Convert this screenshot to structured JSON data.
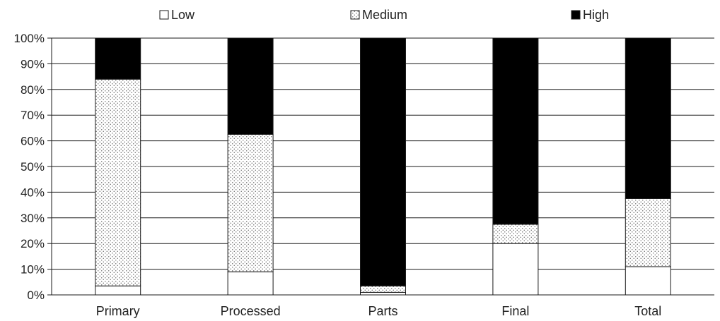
{
  "chart_data": {
    "type": "bar",
    "stacked": true,
    "percent_stacked": true,
    "categories": [
      "Primary",
      "Processed",
      "Parts",
      "Final",
      "Total"
    ],
    "series": [
      {
        "name": "Low",
        "values": [
          3.5,
          9,
          1,
          20,
          11
        ]
      },
      {
        "name": "Medium",
        "values": [
          80.5,
          53.5,
          2.5,
          7.5,
          26.5
        ]
      },
      {
        "name": "High",
        "values": [
          16,
          37.5,
          96.5,
          72.5,
          62.5
        ]
      }
    ],
    "y_ticks": [
      "0%",
      "10%",
      "20%",
      "30%",
      "40%",
      "50%",
      "60%",
      "70%",
      "80%",
      "90%",
      "100%"
    ],
    "ylim": [
      0,
      100
    ],
    "grid": true,
    "legend_position": "top",
    "colors": {
      "Low": "#ffffff",
      "Medium": "dotted",
      "High": "#000000"
    }
  }
}
